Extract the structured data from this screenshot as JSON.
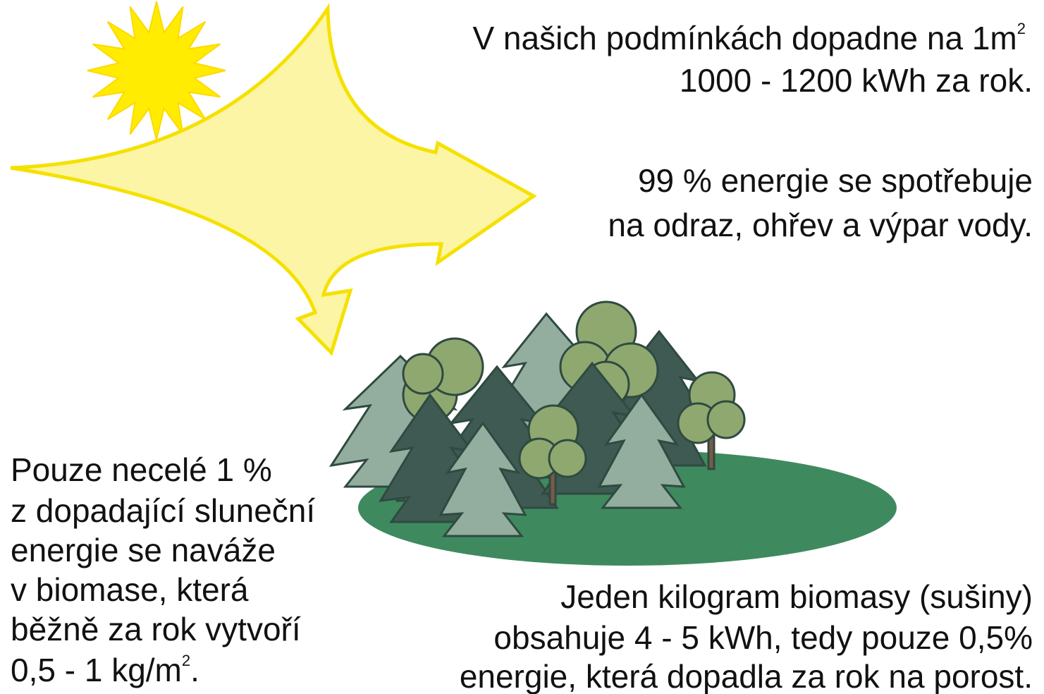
{
  "top_text": {
    "line1": {
      "text": "V našich podmínkách dopadne na 1m",
      "sup": "2"
    },
    "line2": "1000 - 1200 kWh za rok."
  },
  "middle_text": {
    "lines": [
      "99 % energie se spotřebuje",
      "na odraz, ohřev a výpar vody."
    ]
  },
  "left_text": {
    "lines": [
      "Pouze necelé 1 %",
      "z dopadající sluneční",
      "energie se naváže",
      "v biomase, která",
      "běžně za rok vytvoří"
    ],
    "last_line": {
      "text": "0,5 - 1 kg/m",
      "sup": "2",
      "after": "."
    }
  },
  "bottom_text": {
    "lines": [
      "Jeden kilogram biomasy (sušiny)",
      "obsahuje 4 - 5 kWh, tedy pouze 0,5%",
      "energie, která dopadla za rok na porost."
    ]
  }
}
